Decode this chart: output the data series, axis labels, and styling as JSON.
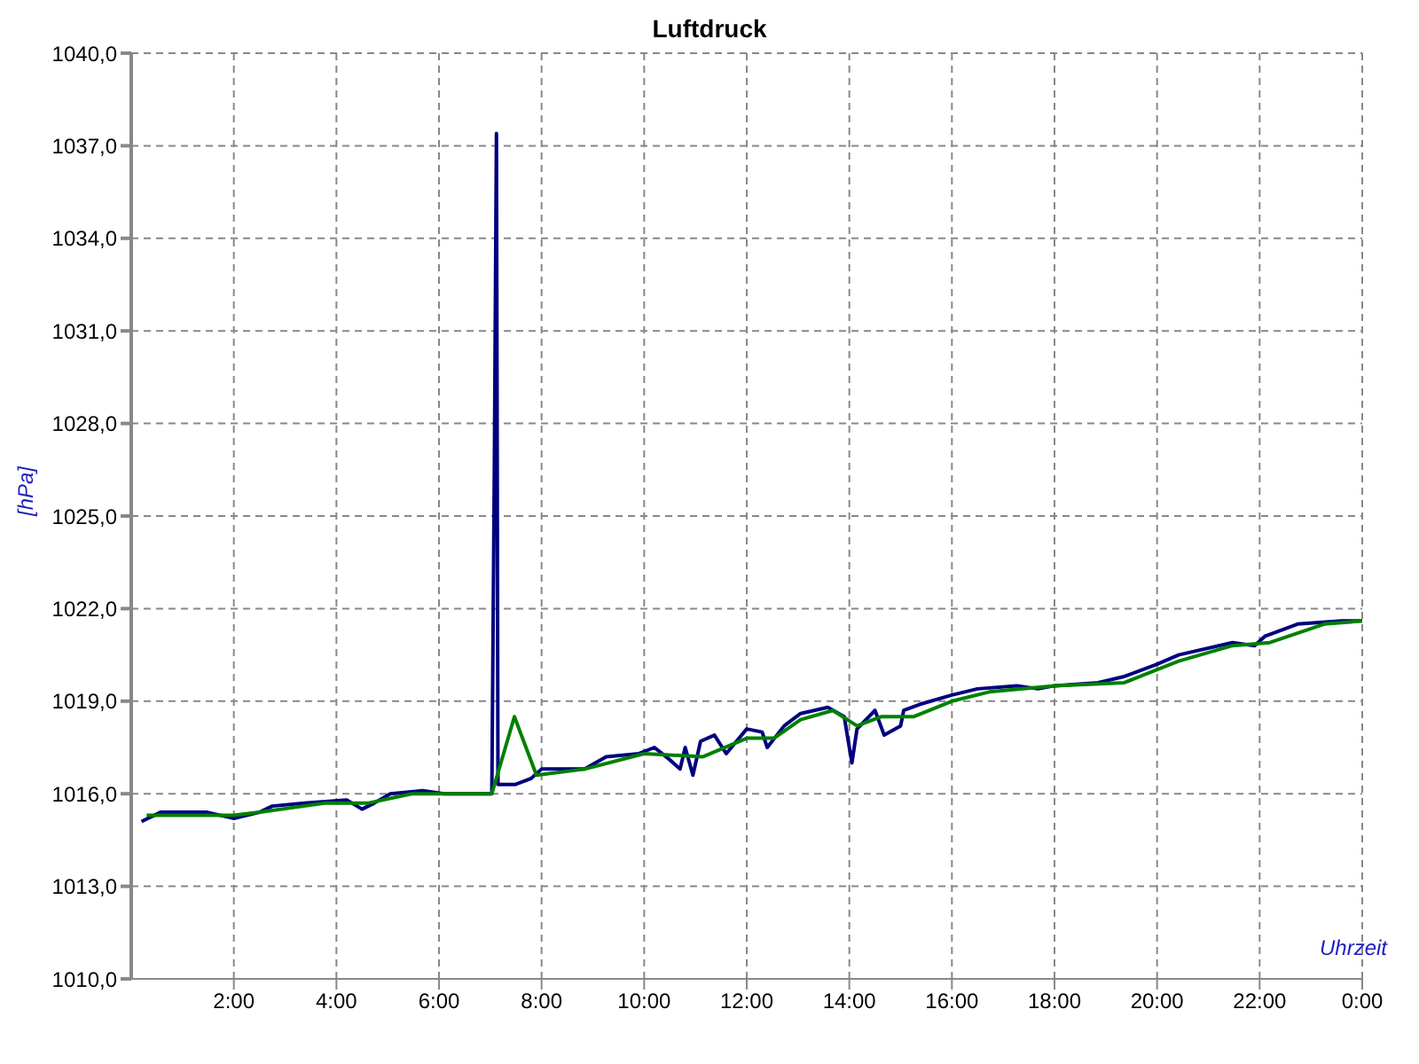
{
  "chart_data": {
    "type": "line",
    "title": "Luftdruck",
    "xlabel": "Uhrzeit",
    "ylabel": "[hPa]",
    "xlim": [
      0,
      24
    ],
    "xticks": [
      {
        "value": 2,
        "label": "2:00"
      },
      {
        "value": 4,
        "label": "4:00"
      },
      {
        "value": 6,
        "label": "6:00"
      },
      {
        "value": 8,
        "label": "8:00"
      },
      {
        "value": 10,
        "label": "10:00"
      },
      {
        "value": 12,
        "label": "12:00"
      },
      {
        "value": 14,
        "label": "14:00"
      },
      {
        "value": 16,
        "label": "16:00"
      },
      {
        "value": 18,
        "label": "18:00"
      },
      {
        "value": 20,
        "label": "20:00"
      },
      {
        "value": 22,
        "label": "22:00"
      },
      {
        "value": 24,
        "label": "0:00"
      }
    ],
    "ylim": [
      1010,
      1040
    ],
    "yticks": [
      {
        "value": 1010,
        "label": "1010,0"
      },
      {
        "value": 1013,
        "label": "1013,0"
      },
      {
        "value": 1016,
        "label": "1016,0"
      },
      {
        "value": 1019,
        "label": "1019,0"
      },
      {
        "value": 1022,
        "label": "1022,0"
      },
      {
        "value": 1025,
        "label": "1025,0"
      },
      {
        "value": 1028,
        "label": "1028,0"
      },
      {
        "value": 1031,
        "label": "1031,0"
      },
      {
        "value": 1034,
        "label": "1034,0"
      },
      {
        "value": 1037,
        "label": "1037,0"
      },
      {
        "value": 1040,
        "label": "1040,0"
      }
    ],
    "grid": true,
    "marker": "none",
    "line_style": "solid",
    "series": [
      {
        "color": "#000080",
        "x": [
          0.2,
          0.57,
          1.48,
          2.0,
          2.5,
          2.75,
          3.38,
          4.2,
          4.5,
          4.74,
          5.05,
          5.68,
          6.1,
          6.73,
          7.03,
          7.08,
          7.12,
          7.15,
          7.48,
          7.8,
          8.0,
          8.84,
          9.26,
          9.9,
          10.2,
          10.5,
          10.7,
          10.8,
          10.95,
          11.1,
          11.37,
          11.6,
          11.8,
          12.0,
          12.3,
          12.4,
          12.73,
          13.05,
          13.58,
          13.9,
          14.05,
          14.15,
          14.5,
          14.68,
          15.0,
          15.06,
          15.38,
          16.0,
          16.5,
          17.27,
          17.68,
          18.0,
          18.85,
          19.36,
          20.0,
          20.42,
          21.47,
          21.9,
          22.1,
          22.74,
          23.6,
          24.0
        ],
        "values": [
          1015.1,
          1015.4,
          1015.4,
          1015.2,
          1015.4,
          1015.6,
          1015.7,
          1015.8,
          1015.5,
          1015.7,
          1016.0,
          1016.1,
          1016.0,
          1016.0,
          1016.0,
          1026.8,
          1037.4,
          1016.3,
          1016.3,
          1016.5,
          1016.8,
          1016.8,
          1017.2,
          1017.3,
          1017.5,
          1017.1,
          1016.8,
          1017.5,
          1016.6,
          1017.7,
          1017.9,
          1017.3,
          1017.7,
          1018.1,
          1018.0,
          1017.5,
          1018.2,
          1018.6,
          1018.8,
          1018.5,
          1017.0,
          1018.1,
          1018.7,
          1017.9,
          1018.2,
          1018.7,
          1018.9,
          1019.2,
          1019.4,
          1019.5,
          1019.4,
          1019.5,
          1019.6,
          1019.8,
          1020.2,
          1020.5,
          1020.9,
          1020.8,
          1021.1,
          1021.5,
          1021.6,
          1021.6
        ]
      },
      {
        "color": "#008000",
        "x": [
          0.3,
          2.0,
          2.5,
          3.8,
          4.63,
          5.47,
          6.1,
          7.03,
          7.47,
          7.9,
          8.84,
          10.0,
          11.15,
          12.0,
          12.53,
          13.05,
          13.68,
          14.15,
          14.63,
          15.26,
          16.0,
          16.73,
          18.0,
          19.36,
          20.42,
          21.47,
          22.2,
          23.26,
          24.0
        ],
        "values": [
          1015.3,
          1015.3,
          1015.4,
          1015.7,
          1015.7,
          1016.0,
          1016.0,
          1016.0,
          1018.5,
          1016.6,
          1016.8,
          1017.3,
          1017.2,
          1017.8,
          1017.8,
          1018.4,
          1018.7,
          1018.2,
          1018.5,
          1018.5,
          1019.0,
          1019.3,
          1019.5,
          1019.6,
          1020.3,
          1020.8,
          1020.9,
          1021.5,
          1021.6
        ]
      }
    ]
  }
}
